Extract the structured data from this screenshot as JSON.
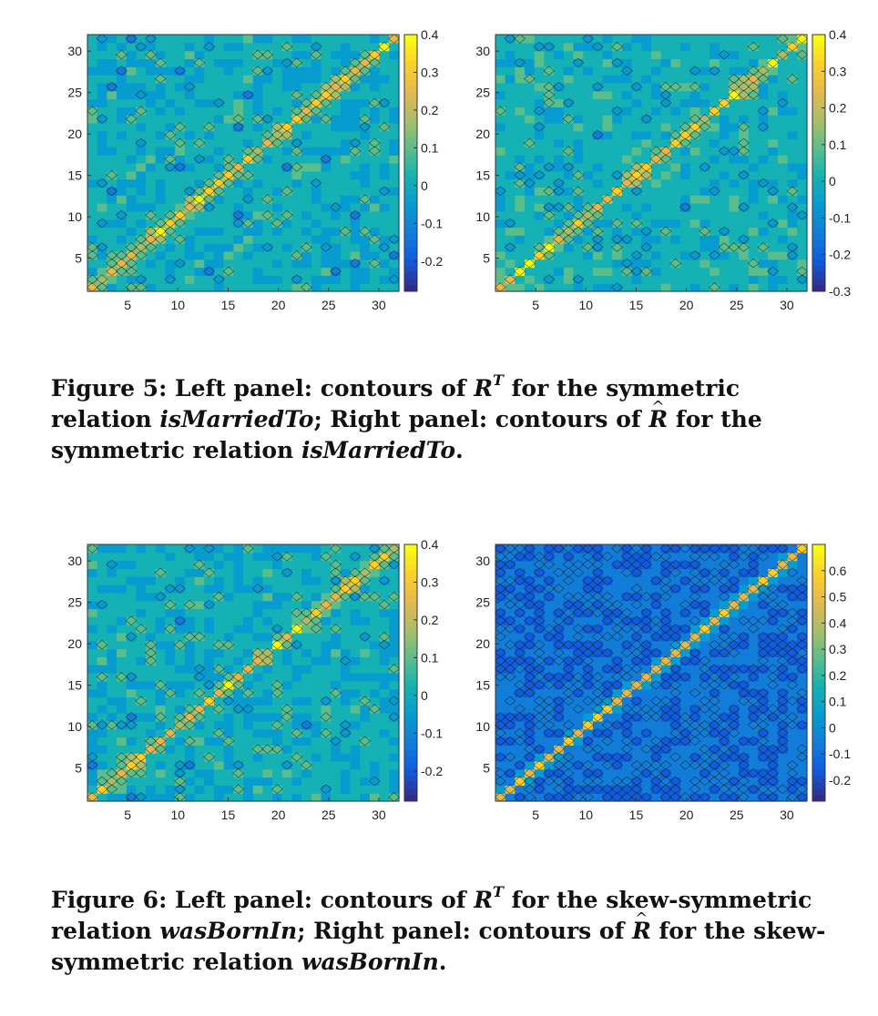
{
  "figures": [
    {
      "caption": {
        "label": "Figure 5:",
        "part1": " Left panel: contours of ",
        "sym1": "R",
        "sup1": "T",
        "part2": " for the symmetric relation ",
        "rel1": "isMarriedTo",
        "part3": "; Right panel: contours of ",
        "sym2": "R",
        "part4": " for the symmetric relation ",
        "rel2": "isMarriedTo",
        "part5": "."
      },
      "panels": [
        {
          "id": "fig5-left",
          "kind": "symmetric",
          "seed": 11,
          "diag_width": 0.9,
          "colorbar": {
            "ticks": [
              "0.4",
              "0.3",
              "0.2",
              "0.1",
              "0",
              "-0.1",
              "-0.2"
            ],
            "range": [
              -0.28,
              0.4
            ]
          }
        },
        {
          "id": "fig5-right",
          "kind": "symmetric",
          "seed": 23,
          "diag_width": 0.9,
          "colorbar": {
            "ticks": [
              "0.4",
              "0.3",
              "0.2",
              "0.1",
              "0",
              "-0.1",
              "-0.2",
              "-0.3"
            ],
            "range": [
              -0.3,
              0.4
            ]
          }
        }
      ]
    },
    {
      "caption": {
        "label": "Figure 6:",
        "part1": " Left panel: contours of ",
        "sym1": "R",
        "sup1": "T",
        "part2": " for the skew-symmetric relation ",
        "rel1": "wasBornIn",
        "part3": "; Right panel: contours of ",
        "sym2": "R",
        "part4": " for the skew-symmetric relation ",
        "rel2": "wasBornIn",
        "part5": "."
      },
      "panels": [
        {
          "id": "fig6-left",
          "kind": "symmetric",
          "seed": 37,
          "diag_width": 0.9,
          "colorbar": {
            "ticks": [
              "0.4",
              "0.3",
              "0.2",
              "0.1",
              "0",
              "-0.1",
              "-0.2"
            ],
            "range": [
              -0.28,
              0.4
            ]
          }
        },
        {
          "id": "fig6-right",
          "kind": "skew",
          "seed": 53,
          "diag_width": 1.0,
          "colorbar": {
            "ticks": [
              "0.6",
              "0.5",
              "0.4",
              "0.3",
              "0.2",
              "0.1",
              "0",
              "-0.1",
              "-0.2"
            ],
            "range": [
              -0.28,
              0.7
            ]
          }
        }
      ]
    }
  ],
  "chart_data": [
    {
      "type": "heatmap",
      "panel": "Figure 5 left",
      "x_ticks": [
        5,
        10,
        15,
        20,
        25,
        30
      ],
      "y_ticks": [
        5,
        10,
        15,
        20,
        25,
        30
      ],
      "xlim": [
        1,
        32
      ],
      "ylim": [
        1,
        32
      ],
      "colorbar_ticks": [
        0.4,
        0.3,
        0.2,
        0.1,
        0,
        -0.1,
        -0.2
      ],
      "colorbar_range": [
        -0.28,
        0.4
      ]
    },
    {
      "type": "heatmap",
      "panel": "Figure 5 right",
      "x_ticks": [
        5,
        10,
        15,
        20,
        25,
        30
      ],
      "y_ticks": [
        5,
        10,
        15,
        20,
        25,
        30
      ],
      "xlim": [
        1,
        32
      ],
      "ylim": [
        1,
        32
      ],
      "colorbar_ticks": [
        0.4,
        0.3,
        0.2,
        0.1,
        0,
        -0.1,
        -0.2,
        -0.3
      ],
      "colorbar_range": [
        -0.3,
        0.4
      ]
    },
    {
      "type": "heatmap",
      "panel": "Figure 6 left",
      "x_ticks": [
        5,
        10,
        15,
        20,
        25,
        30
      ],
      "y_ticks": [
        5,
        10,
        15,
        20,
        25,
        30
      ],
      "xlim": [
        1,
        32
      ],
      "ylim": [
        1,
        32
      ],
      "colorbar_ticks": [
        0.4,
        0.3,
        0.2,
        0.1,
        0,
        -0.1,
        -0.2
      ],
      "colorbar_range": [
        -0.28,
        0.4
      ]
    },
    {
      "type": "heatmap",
      "panel": "Figure 6 right",
      "x_ticks": [
        5,
        10,
        15,
        20,
        25,
        30
      ],
      "y_ticks": [
        5,
        10,
        15,
        20,
        25,
        30
      ],
      "xlim": [
        1,
        32
      ],
      "ylim": [
        1,
        32
      ],
      "colorbar_ticks": [
        0.6,
        0.5,
        0.4,
        0.3,
        0.2,
        0.1,
        0,
        -0.1,
        -0.2
      ],
      "colorbar_range": [
        -0.28,
        0.7
      ]
    }
  ],
  "axis": {
    "x_ticks": [
      "5",
      "10",
      "15",
      "20",
      "25",
      "30"
    ],
    "y_ticks": [
      "5",
      "10",
      "15",
      "20",
      "25",
      "30"
    ]
  }
}
